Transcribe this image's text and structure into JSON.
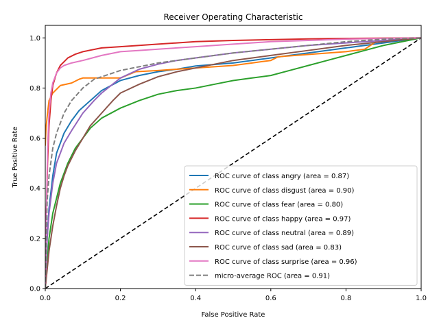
{
  "chart_data": {
    "type": "line",
    "title": "Receiver Operating Characteristic",
    "xlabel": "False Positive Rate",
    "ylabel": "True Positive Rate",
    "xlim": [
      0.0,
      1.0
    ],
    "ylim": [
      0.0,
      1.05
    ],
    "x_ticks": [
      "0.0",
      "0.2",
      "0.4",
      "0.6",
      "0.8",
      "1.0"
    ],
    "y_ticks": [
      "0.0",
      "0.2",
      "0.4",
      "0.6",
      "0.8",
      "1.0"
    ],
    "grid": false,
    "legend_position": "lower-right",
    "series": [
      {
        "name": "ROC curve of class angry (area = 0.87)",
        "color": "#1f77b4",
        "dashed": false,
        "x": [
          0.0,
          0.005,
          0.01,
          0.02,
          0.03,
          0.05,
          0.07,
          0.09,
          0.12,
          0.15,
          0.2,
          0.25,
          0.3,
          0.35,
          0.4,
          0.5,
          0.6,
          0.7,
          0.8,
          0.9,
          1.0
        ],
        "y": [
          0.0,
          0.2,
          0.32,
          0.45,
          0.54,
          0.62,
          0.67,
          0.71,
          0.75,
          0.79,
          0.83,
          0.85,
          0.865,
          0.875,
          0.888,
          0.9,
          0.92,
          0.94,
          0.96,
          0.98,
          1.0
        ]
      },
      {
        "name": "ROC curve of class disgust (area = 0.90)",
        "color": "#ff7f0e",
        "dashed": false,
        "x": [
          0.0,
          0.002,
          0.006,
          0.01,
          0.02,
          0.04,
          0.07,
          0.09,
          0.1,
          0.2,
          0.24,
          0.3,
          0.35,
          0.45,
          0.5,
          0.55,
          0.6,
          0.62,
          0.8,
          0.85,
          0.88,
          1.0
        ],
        "y": [
          0.57,
          0.64,
          0.7,
          0.75,
          0.78,
          0.81,
          0.82,
          0.835,
          0.84,
          0.84,
          0.865,
          0.87,
          0.875,
          0.885,
          0.89,
          0.9,
          0.91,
          0.925,
          0.945,
          0.955,
          0.985,
          1.0
        ]
      },
      {
        "name": "ROC curve of class fear (area = 0.80)",
        "color": "#2ca02c",
        "dashed": false,
        "x": [
          0.0,
          0.01,
          0.02,
          0.04,
          0.06,
          0.08,
          0.1,
          0.12,
          0.15,
          0.2,
          0.25,
          0.3,
          0.35,
          0.4,
          0.45,
          0.5,
          0.55,
          0.6,
          0.65,
          0.7,
          0.75,
          0.8,
          0.85,
          0.9,
          0.95,
          1.0
        ],
        "y": [
          0.0,
          0.2,
          0.3,
          0.42,
          0.5,
          0.56,
          0.6,
          0.64,
          0.68,
          0.72,
          0.75,
          0.775,
          0.79,
          0.8,
          0.815,
          0.83,
          0.84,
          0.85,
          0.87,
          0.89,
          0.91,
          0.93,
          0.95,
          0.97,
          0.985,
          1.0
        ]
      },
      {
        "name": "ROC curve of class happy (area = 0.97)",
        "color": "#d62728",
        "dashed": false,
        "x": [
          0.0,
          0.003,
          0.006,
          0.01,
          0.015,
          0.02,
          0.03,
          0.04,
          0.05,
          0.06,
          0.08,
          0.1,
          0.15,
          0.2,
          0.3,
          0.4,
          0.5,
          0.6,
          0.7,
          0.8,
          0.9,
          1.0
        ],
        "y": [
          0.0,
          0.3,
          0.5,
          0.65,
          0.75,
          0.81,
          0.86,
          0.89,
          0.905,
          0.92,
          0.935,
          0.945,
          0.96,
          0.965,
          0.975,
          0.985,
          0.99,
          0.993,
          0.996,
          0.998,
          0.999,
          1.0
        ]
      },
      {
        "name": "ROC curve of class neutral (area = 0.89)",
        "color": "#9467bd",
        "dashed": false,
        "x": [
          0.0,
          0.005,
          0.01,
          0.02,
          0.03,
          0.05,
          0.07,
          0.1,
          0.13,
          0.15,
          0.2,
          0.25,
          0.3,
          0.35,
          0.4,
          0.5,
          0.6,
          0.7,
          0.8,
          0.9,
          1.0
        ],
        "y": [
          0.0,
          0.2,
          0.3,
          0.42,
          0.5,
          0.58,
          0.63,
          0.7,
          0.75,
          0.78,
          0.84,
          0.875,
          0.895,
          0.91,
          0.92,
          0.94,
          0.955,
          0.97,
          0.98,
          0.99,
          1.0
        ]
      },
      {
        "name": "ROC curve of class sad (area = 0.83)",
        "color": "#8c564b",
        "dashed": false,
        "x": [
          0.0,
          0.01,
          0.02,
          0.03,
          0.04,
          0.05,
          0.06,
          0.08,
          0.1,
          0.12,
          0.15,
          0.18,
          0.2,
          0.25,
          0.3,
          0.35,
          0.4,
          0.5,
          0.6,
          0.7,
          0.8,
          0.9,
          1.0
        ],
        "y": [
          0.0,
          0.15,
          0.25,
          0.33,
          0.4,
          0.45,
          0.49,
          0.55,
          0.6,
          0.65,
          0.7,
          0.75,
          0.78,
          0.815,
          0.845,
          0.865,
          0.88,
          0.91,
          0.93,
          0.95,
          0.97,
          0.985,
          1.0
        ]
      },
      {
        "name": "ROC curve of class surprise (area = 0.96)",
        "color": "#e377c2",
        "dashed": false,
        "x": [
          0.0,
          0.003,
          0.006,
          0.01,
          0.015,
          0.02,
          0.03,
          0.04,
          0.05,
          0.07,
          0.1,
          0.15,
          0.2,
          0.25,
          0.3,
          0.4,
          0.5,
          0.6,
          0.7,
          0.8,
          0.9,
          1.0
        ],
        "y": [
          0.0,
          0.3,
          0.55,
          0.7,
          0.78,
          0.82,
          0.86,
          0.88,
          0.89,
          0.9,
          0.91,
          0.93,
          0.945,
          0.95,
          0.955,
          0.965,
          0.975,
          0.985,
          0.99,
          0.995,
          0.998,
          1.0
        ]
      },
      {
        "name": "micro-average ROC (area = 0.91)",
        "color": "#7f7f7f",
        "dashed": true,
        "x": [
          0.0,
          0.005,
          0.01,
          0.02,
          0.03,
          0.05,
          0.07,
          0.1,
          0.13,
          0.15,
          0.2,
          0.25,
          0.3,
          0.4,
          0.5,
          0.6,
          0.7,
          0.8,
          0.9,
          1.0
        ],
        "y": [
          0.0,
          0.35,
          0.45,
          0.56,
          0.62,
          0.7,
          0.75,
          0.8,
          0.835,
          0.845,
          0.87,
          0.885,
          0.9,
          0.92,
          0.94,
          0.955,
          0.97,
          0.985,
          0.995,
          1.0
        ]
      }
    ],
    "diagonal": {
      "color": "#000000",
      "dashed": true,
      "x": [
        0.0,
        1.0
      ],
      "y": [
        0.0,
        1.0
      ]
    }
  }
}
